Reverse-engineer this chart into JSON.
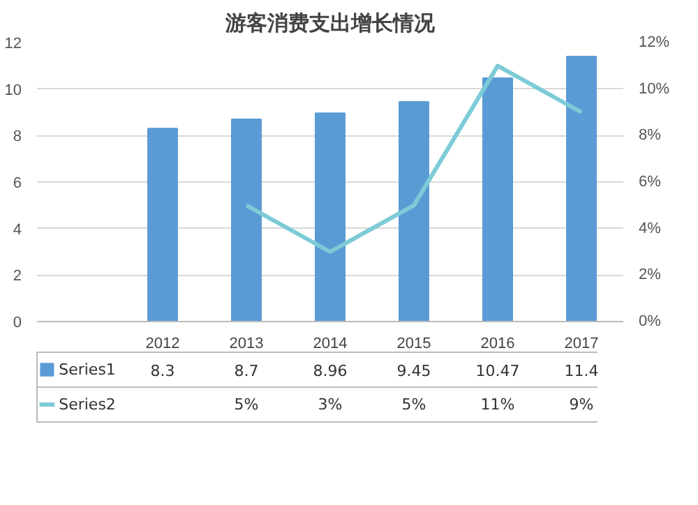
{
  "chart_data": {
    "type": "bar",
    "title": "游客消费支出增长情况",
    "categories": [
      "2012",
      "2013",
      "2014",
      "2015",
      "2016",
      "2017"
    ],
    "series": [
      {
        "name": "Series1",
        "type": "bar",
        "color": "#5b9bd5",
        "values": [
          8.3,
          8.7,
          8.96,
          9.45,
          10.47,
          11.4
        ],
        "value_labels": [
          "8.3",
          "8.7",
          "8.96",
          "9.45",
          "10.47",
          "11.4"
        ]
      },
      {
        "name": "Series2",
        "type": "line",
        "axis": "y2",
        "color": "#7ccbd6",
        "values": [
          null,
          5,
          3,
          5,
          11,
          9
        ],
        "value_labels": [
          null,
          "5%",
          "3%",
          "5%",
          "11%",
          "9%"
        ]
      }
    ],
    "ylim": [
      0,
      12
    ],
    "yticks": [
      0,
      2,
      4,
      6,
      8,
      10,
      12
    ],
    "y2lim": [
      0,
      12
    ],
    "y2ticks": [
      {
        "value": 0,
        "label": "0%"
      },
      {
        "value": 2,
        "label": "2%"
      },
      {
        "value": 4,
        "label": "4%"
      },
      {
        "value": 6,
        "label": "6%"
      },
      {
        "value": 8,
        "label": "8%"
      },
      {
        "value": 10,
        "label": "10%"
      },
      {
        "value": 12,
        "label": "12%"
      }
    ],
    "grid": "y",
    "line_style": "solid",
    "legend": "bottom"
  }
}
